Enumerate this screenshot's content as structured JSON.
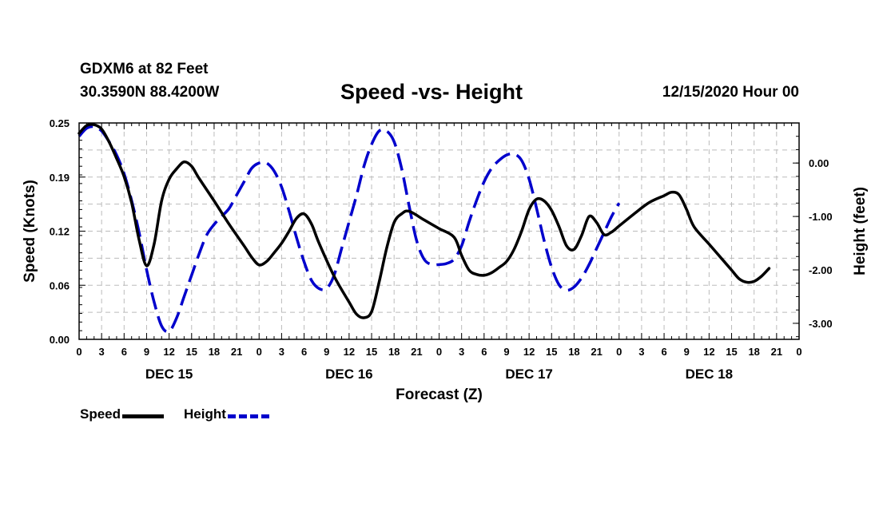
{
  "header": {
    "station": "GDXM6 at 82 Feet",
    "coordinates": "30.3590N 88.4200W",
    "run": "12/15/2020 Hour 00"
  },
  "chart_data": {
    "type": "line",
    "title": "Speed -vs- Height",
    "xlabel": "Forecast (Z)",
    "ylabel_left": "Speed (Knots)",
    "ylabel_right": "Height (feet)",
    "x_range_hours": [
      0,
      96
    ],
    "ylim_left": [
      0,
      0.25
    ],
    "ylim_right": [
      -3.3,
      0.75
    ],
    "left_ticks": [
      "0.00",
      "0.06",
      "0.12",
      "0.19",
      "0.25"
    ],
    "left_tick_values": [
      0,
      0.0625,
      0.125,
      0.1875,
      0.25
    ],
    "right_ticks": [
      "-3.00",
      "-2.00",
      "-1.00",
      "0.00"
    ],
    "right_tick_values": [
      -3,
      -2,
      -1,
      0
    ],
    "x_tick_labels": [
      "0",
      "3",
      "6",
      "9",
      "12",
      "15",
      "18",
      "21",
      "0",
      "3",
      "6",
      "9",
      "12",
      "15",
      "18",
      "21",
      "0",
      "3",
      "6",
      "9",
      "12",
      "15",
      "18",
      "21",
      "0",
      "3",
      "6",
      "9",
      "12",
      "15",
      "18",
      "21",
      "0"
    ],
    "day_labels": [
      {
        "label": "DEC 15",
        "hour": 12
      },
      {
        "label": "DEC 16",
        "hour": 36
      },
      {
        "label": "DEC 17",
        "hour": 60
      },
      {
        "label": "DEC 18",
        "hour": 84
      }
    ],
    "grid": true,
    "series": [
      {
        "name": "Speed",
        "axis": "left",
        "color": "#000000",
        "style": "solid",
        "points": [
          [
            0,
            0.238
          ],
          [
            1,
            0.247
          ],
          [
            2,
            0.248
          ],
          [
            3,
            0.243
          ],
          [
            4,
            0.228
          ],
          [
            5,
            0.209
          ],
          [
            6,
            0.188
          ],
          [
            7,
            0.158
          ],
          [
            8,
            0.115
          ],
          [
            9,
            0.085
          ],
          [
            10,
            0.11
          ],
          [
            11,
            0.16
          ],
          [
            12,
            0.185
          ],
          [
            13,
            0.197
          ],
          [
            14,
            0.205
          ],
          [
            15,
            0.2
          ],
          [
            16,
            0.186
          ],
          [
            18,
            0.16
          ],
          [
            20,
            0.133
          ],
          [
            22,
            0.108
          ],
          [
            23,
            0.095
          ],
          [
            24,
            0.086
          ],
          [
            25,
            0.09
          ],
          [
            26,
            0.1
          ],
          [
            27,
            0.111
          ],
          [
            28,
            0.125
          ],
          [
            29,
            0.14
          ],
          [
            30,
            0.145
          ],
          [
            31,
            0.133
          ],
          [
            32,
            0.111
          ],
          [
            34,
            0.073
          ],
          [
            36,
            0.043
          ],
          [
            37,
            0.029
          ],
          [
            38,
            0.025
          ],
          [
            39,
            0.032
          ],
          [
            40,
            0.066
          ],
          [
            41,
            0.105
          ],
          [
            42,
            0.135
          ],
          [
            43,
            0.145
          ],
          [
            44,
            0.148
          ],
          [
            46,
            0.138
          ],
          [
            48,
            0.128
          ],
          [
            50,
            0.118
          ],
          [
            51,
            0.097
          ],
          [
            52,
            0.08
          ],
          [
            53,
            0.075
          ],
          [
            54,
            0.074
          ],
          [
            55,
            0.077
          ],
          [
            56,
            0.083
          ],
          [
            57,
            0.09
          ],
          [
            58,
            0.104
          ],
          [
            59,
            0.125
          ],
          [
            60,
            0.15
          ],
          [
            61,
            0.162
          ],
          [
            62,
            0.16
          ],
          [
            63,
            0.149
          ],
          [
            64,
            0.13
          ],
          [
            65,
            0.108
          ],
          [
            66,
            0.104
          ],
          [
            67,
            0.12
          ],
          [
            68,
            0.142
          ],
          [
            69,
            0.135
          ],
          [
            70,
            0.121
          ],
          [
            71,
            0.124
          ],
          [
            72,
            0.131
          ],
          [
            74,
            0.145
          ],
          [
            76,
            0.158
          ],
          [
            78,
            0.166
          ],
          [
            79,
            0.17
          ],
          [
            80,
            0.167
          ],
          [
            81,
            0.15
          ],
          [
            82,
            0.13
          ],
          [
            84,
            0.11
          ],
          [
            86,
            0.09
          ],
          [
            87,
            0.08
          ],
          [
            88,
            0.07
          ],
          [
            89,
            0.066
          ],
          [
            90,
            0.067
          ],
          [
            91,
            0.073
          ],
          [
            92,
            0.082
          ]
        ]
      },
      {
        "name": "Height",
        "axis": "right",
        "color": "#0000cc",
        "style": "dashed",
        "points": [
          [
            0,
            0.5
          ],
          [
            1,
            0.65
          ],
          [
            2,
            0.68
          ],
          [
            3,
            0.6
          ],
          [
            4,
            0.4
          ],
          [
            5,
            0.15
          ],
          [
            6,
            -0.2
          ],
          [
            7,
            -0.7
          ],
          [
            8,
            -1.3
          ],
          [
            9,
            -2.0
          ],
          [
            10,
            -2.6
          ],
          [
            11,
            -3.05
          ],
          [
            12,
            -3.15
          ],
          [
            13,
            -2.9
          ],
          [
            14,
            -2.5
          ],
          [
            15,
            -2.1
          ],
          [
            16,
            -1.7
          ],
          [
            17,
            -1.35
          ],
          [
            18,
            -1.15
          ],
          [
            19,
            -1.0
          ],
          [
            20,
            -0.85
          ],
          [
            21,
            -0.6
          ],
          [
            22,
            -0.35
          ],
          [
            23,
            -0.1
          ],
          [
            24,
            0.0
          ],
          [
            25,
            0.0
          ],
          [
            26,
            -0.15
          ],
          [
            27,
            -0.45
          ],
          [
            28,
            -0.9
          ],
          [
            29,
            -1.4
          ],
          [
            30,
            -1.85
          ],
          [
            31,
            -2.2
          ],
          [
            32,
            -2.35
          ],
          [
            33,
            -2.35
          ],
          [
            34,
            -2.1
          ],
          [
            35,
            -1.6
          ],
          [
            36,
            -1.1
          ],
          [
            37,
            -0.6
          ],
          [
            38,
            -0.05
          ],
          [
            39,
            0.35
          ],
          [
            40,
            0.6
          ],
          [
            41,
            0.6
          ],
          [
            42,
            0.4
          ],
          [
            43,
            -0.1
          ],
          [
            44,
            -0.8
          ],
          [
            45,
            -1.45
          ],
          [
            46,
            -1.8
          ],
          [
            47,
            -1.9
          ],
          [
            48,
            -1.9
          ],
          [
            49,
            -1.88
          ],
          [
            50,
            -1.8
          ],
          [
            51,
            -1.55
          ],
          [
            52,
            -1.1
          ],
          [
            53,
            -0.7
          ],
          [
            54,
            -0.35
          ],
          [
            55,
            -0.1
          ],
          [
            56,
            0.05
          ],
          [
            57,
            0.15
          ],
          [
            58,
            0.17
          ],
          [
            59,
            0.05
          ],
          [
            60,
            -0.3
          ],
          [
            61,
            -0.85
          ],
          [
            62,
            -1.45
          ],
          [
            63,
            -1.95
          ],
          [
            64,
            -2.28
          ],
          [
            65,
            -2.38
          ],
          [
            66,
            -2.32
          ],
          [
            67,
            -2.15
          ],
          [
            68,
            -1.9
          ],
          [
            69,
            -1.6
          ],
          [
            70,
            -1.3
          ],
          [
            71,
            -1.0
          ],
          [
            72,
            -0.75
          ]
        ]
      }
    ]
  },
  "legend": {
    "speed_label": "Speed",
    "height_label": "Height"
  }
}
